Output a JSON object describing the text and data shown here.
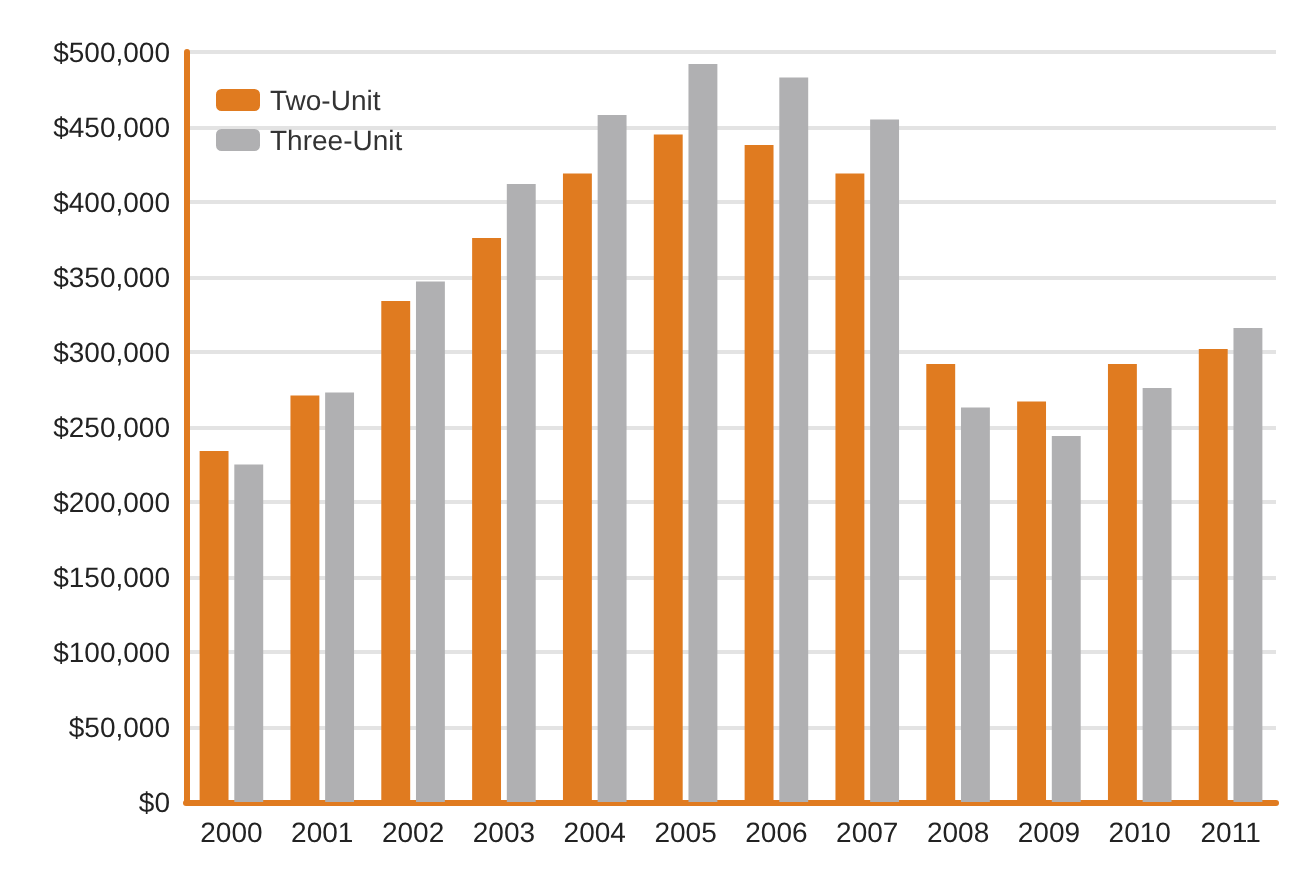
{
  "chart_data": {
    "type": "bar",
    "categories": [
      "2000",
      "2001",
      "2002",
      "2003",
      "2004",
      "2005",
      "2006",
      "2007",
      "2008",
      "2009",
      "2010",
      "2011"
    ],
    "series": [
      {
        "name": "Two-Unit",
        "color": "#e07b20",
        "values": [
          234000,
          271000,
          334000,
          376000,
          419000,
          445000,
          438000,
          419000,
          292000,
          267000,
          292000,
          302000
        ]
      },
      {
        "name": "Three-Unit",
        "color": "#b0b0b2",
        "values": [
          225000,
          273000,
          347000,
          412000,
          458000,
          492000,
          483000,
          455000,
          263000,
          244000,
          276000,
          316000
        ]
      }
    ],
    "ylim": [
      0,
      500000
    ],
    "yticks": [
      {
        "value": 0,
        "label": "$0"
      },
      {
        "value": 50000,
        "label": "$50,000"
      },
      {
        "value": 100000,
        "label": "$100,000"
      },
      {
        "value": 150000,
        "label": "$150,000"
      },
      {
        "value": 200000,
        "label": "$200,000"
      },
      {
        "value": 250000,
        "label": "$250,000"
      },
      {
        "value": 300000,
        "label": "$300,000"
      },
      {
        "value": 350000,
        "label": "$350,000"
      },
      {
        "value": 400000,
        "label": "$400,000"
      },
      {
        "value": 450000,
        "label": "$450,000"
      },
      {
        "value": 500000,
        "label": "$500,000"
      }
    ],
    "grid": "y",
    "legend": "top left"
  }
}
